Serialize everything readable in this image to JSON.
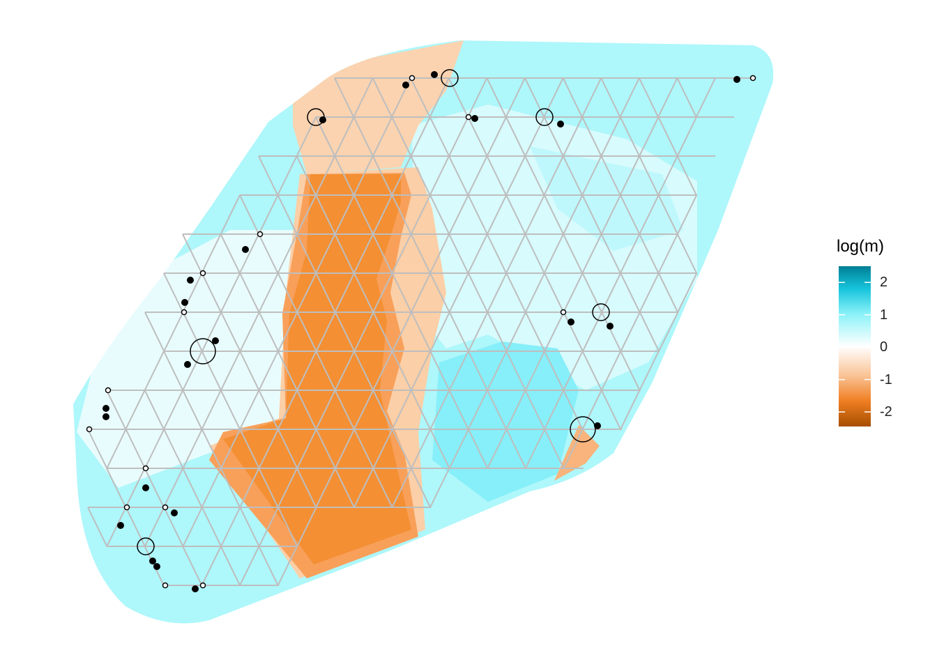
{
  "legend": {
    "title": "log(m)",
    "range": [
      -2.45,
      2.5
    ],
    "ticks": [
      {
        "value": 2,
        "label": "2"
      },
      {
        "value": 1,
        "label": "1"
      },
      {
        "value": 0,
        "label": "0"
      },
      {
        "value": -1,
        "label": "-1"
      },
      {
        "value": -2,
        "label": "-2"
      }
    ],
    "colors": {
      "low": "#a64e00",
      "mid_low": "#f7912f",
      "zero": "#ffffff",
      "mid_high": "#2ee6f5",
      "high": "#007f95"
    }
  },
  "grid": {
    "line_color": "#bebebe",
    "type": "triangular"
  },
  "region_colors": {
    "light_cyan": "#aef7fb",
    "pale_cyan": "#dafcfd",
    "cyan": "#7feef8",
    "pale_orange": "#fbd3b0",
    "orange": "#f8a35a",
    "deep_orange": "#f48f33"
  }
}
